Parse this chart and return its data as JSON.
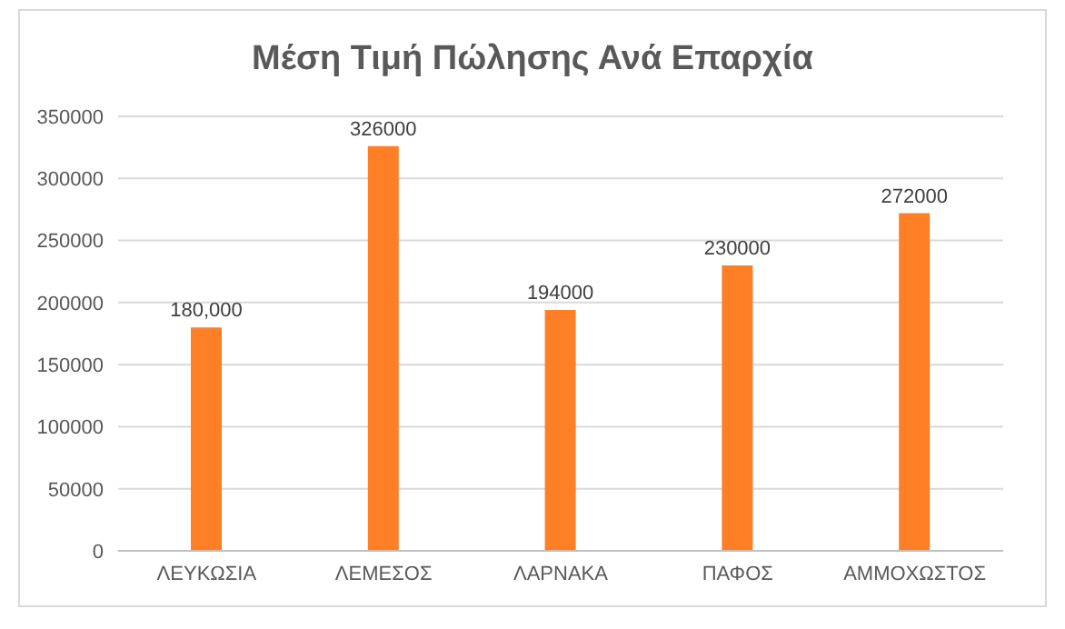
{
  "chart_data": {
    "type": "bar",
    "title": "Μέση Τιμή Πώλησης Ανά Επαρχία",
    "categories": [
      "ΛΕΥΚΩΣΙΑ",
      "ΛΕΜΕΣΟΣ",
      "ΛΑΡΝΑΚΑ",
      "ΠΑΦΟΣ",
      "ΑΜΜΟΧΩΣΤΟΣ"
    ],
    "values": [
      180000,
      326000,
      194000,
      230000,
      272000
    ],
    "value_labels": [
      "180,000",
      "326000",
      "194000",
      "230000",
      "272000"
    ],
    "color": "#ff7f27",
    "ylim": [
      0,
      350000
    ],
    "yticks": [
      0,
      50000,
      100000,
      150000,
      200000,
      250000,
      300000,
      350000
    ],
    "grid": "y"
  }
}
